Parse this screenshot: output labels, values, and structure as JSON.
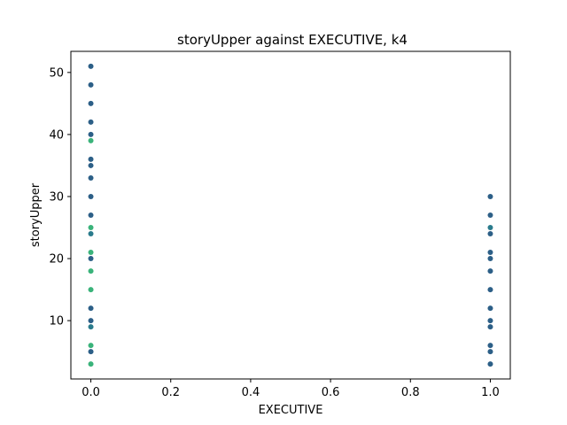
{
  "chart_data": {
    "type": "scatter",
    "title": "storyUpper against EXECUTIVE, k4",
    "xlabel": "EXECUTIVE",
    "ylabel": "storyUpper",
    "xlim": [
      -0.05,
      1.05
    ],
    "ylim": [
      0.6,
      53.4
    ],
    "xticks": [
      0.0,
      0.2,
      0.4,
      0.6,
      0.8,
      1.0
    ],
    "xtick_labels": [
      "0.0",
      "0.2",
      "0.4",
      "0.6",
      "0.8",
      "1.0"
    ],
    "yticks": [
      10,
      20,
      30,
      40,
      50
    ],
    "ytick_labels": [
      "10",
      "20",
      "30",
      "40",
      "50"
    ],
    "grid": false,
    "legend": "none",
    "colors": {
      "dark": "#2c5f87",
      "mid": "#2a7b8c",
      "green": "#3ab37a"
    },
    "points": [
      {
        "x": 0,
        "y": 51,
        "c": "dark"
      },
      {
        "x": 0,
        "y": 48,
        "c": "dark"
      },
      {
        "x": 0,
        "y": 45,
        "c": "dark"
      },
      {
        "x": 0,
        "y": 42,
        "c": "dark"
      },
      {
        "x": 0,
        "y": 40,
        "c": "dark"
      },
      {
        "x": 0,
        "y": 39,
        "c": "green"
      },
      {
        "x": 0,
        "y": 36,
        "c": "dark"
      },
      {
        "x": 0,
        "y": 35,
        "c": "dark"
      },
      {
        "x": 0,
        "y": 33,
        "c": "dark"
      },
      {
        "x": 0,
        "y": 30,
        "c": "dark"
      },
      {
        "x": 0,
        "y": 27,
        "c": "dark"
      },
      {
        "x": 0,
        "y": 25,
        "c": "green"
      },
      {
        "x": 0,
        "y": 24,
        "c": "mid"
      },
      {
        "x": 0,
        "y": 21,
        "c": "green"
      },
      {
        "x": 0,
        "y": 20,
        "c": "dark"
      },
      {
        "x": 0,
        "y": 18,
        "c": "green"
      },
      {
        "x": 0,
        "y": 15,
        "c": "green"
      },
      {
        "x": 0,
        "y": 12,
        "c": "dark"
      },
      {
        "x": 0,
        "y": 10,
        "c": "dark"
      },
      {
        "x": 0,
        "y": 9,
        "c": "mid"
      },
      {
        "x": 0,
        "y": 6,
        "c": "green"
      },
      {
        "x": 0,
        "y": 5,
        "c": "dark"
      },
      {
        "x": 0,
        "y": 3,
        "c": "green"
      },
      {
        "x": 1,
        "y": 30,
        "c": "dark"
      },
      {
        "x": 1,
        "y": 27,
        "c": "dark"
      },
      {
        "x": 1,
        "y": 25,
        "c": "mid"
      },
      {
        "x": 1,
        "y": 24,
        "c": "dark"
      },
      {
        "x": 1,
        "y": 21,
        "c": "dark"
      },
      {
        "x": 1,
        "y": 20,
        "c": "dark"
      },
      {
        "x": 1,
        "y": 18,
        "c": "dark"
      },
      {
        "x": 1,
        "y": 15,
        "c": "dark"
      },
      {
        "x": 1,
        "y": 12,
        "c": "dark"
      },
      {
        "x": 1,
        "y": 10,
        "c": "dark"
      },
      {
        "x": 1,
        "y": 9,
        "c": "dark"
      },
      {
        "x": 1,
        "y": 6,
        "c": "dark"
      },
      {
        "x": 1,
        "y": 5,
        "c": "dark"
      },
      {
        "x": 1,
        "y": 3,
        "c": "dark"
      }
    ]
  }
}
